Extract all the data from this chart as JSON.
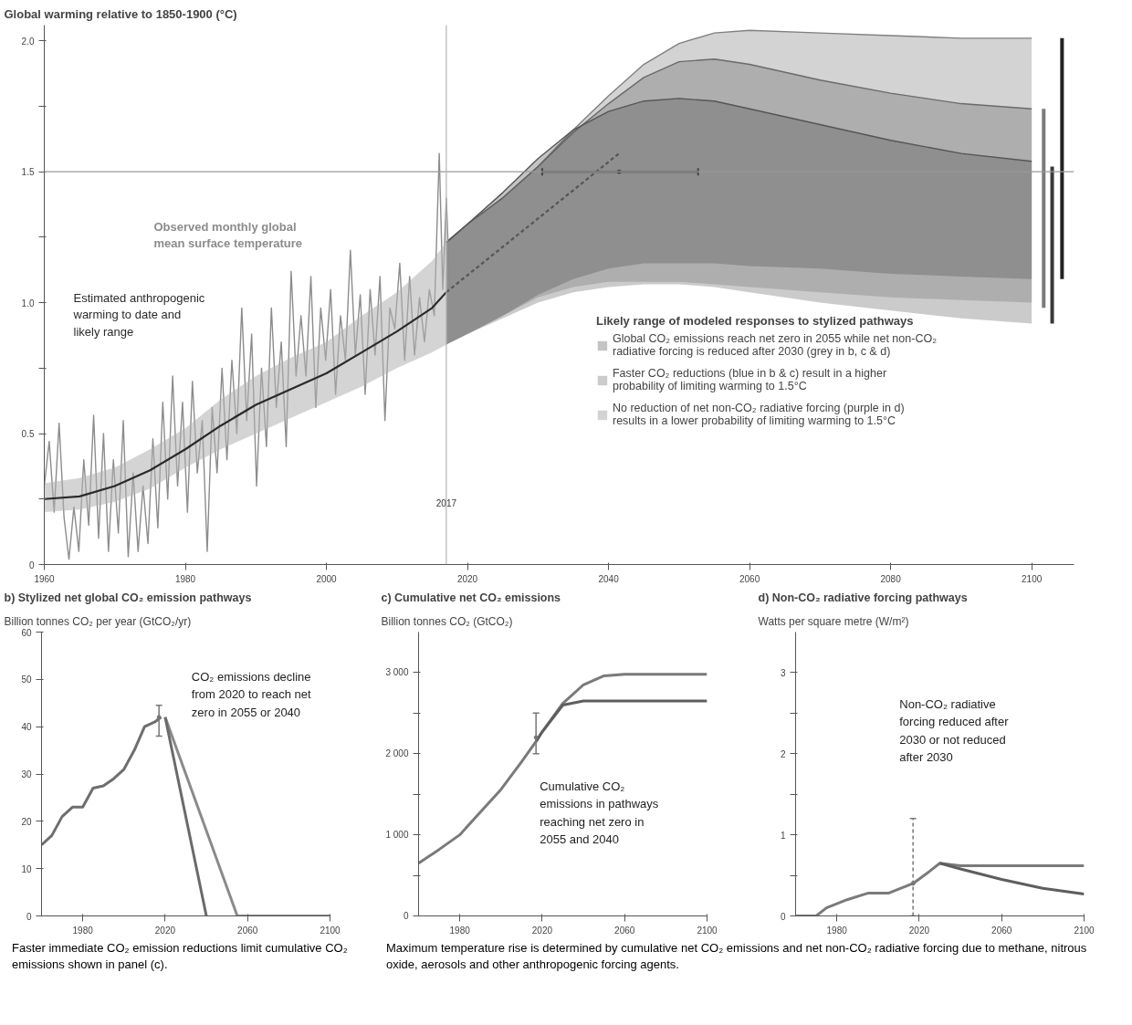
{
  "chart_data": [
    {
      "type": "line",
      "title": "Global warming relative to 1850-1900 (°C)",
      "legend_title": "Likely range of modeled responses to stylized pathways",
      "legend": "bottom right",
      "xlim": [
        1960,
        2106
      ],
      "ylim": [
        0,
        2.06
      ],
      "xticks": [
        1960,
        1980,
        2000,
        2020,
        2040,
        2060,
        2080,
        2100
      ],
      "yticks": [
        0,
        {
          "value": 0.25,
          "label": null
        },
        0.5,
        {
          "value": 0.75,
          "label": null
        },
        {
          "value": 1,
          "label": "1.0"
        },
        {
          "value": 1.25,
          "label": null
        },
        1.5,
        {
          "value": 1.75,
          "label": null
        },
        {
          "value": 2,
          "label": "2.0"
        }
      ],
      "ref_lines": [
        {
          "axis": "y",
          "value": 1.5,
          "color": "#9a9a9a"
        },
        {
          "axis": "x",
          "value": 2017,
          "label": "2017",
          "color": "#b5b5b5"
        }
      ],
      "series": [
        {
          "type": "line",
          "name": "Observed monthly global mean surface temperature",
          "color": "#8c8c8c",
          "x": [
            1960,
            1960.7,
            1961.4,
            1962.1,
            1962.8,
            1963.5,
            1964.2,
            1964.9,
            1965.6,
            1966.3,
            1967,
            1967.7,
            1968.4,
            1969.1,
            1969.8,
            1970.5,
            1971.2,
            1971.9,
            1972.6,
            1973.3,
            1974,
            1974.7,
            1975.4,
            1976.1,
            1976.8,
            1977.5,
            1978.2,
            1978.9,
            1979.6,
            1980.3,
            1981,
            1981.7,
            1982.4,
            1983.1,
            1983.8,
            1984.5,
            1985.2,
            1985.9,
            1986.6,
            1987.3,
            1988,
            1988.7,
            1989.4,
            1990.1,
            1990.8,
            1991.5,
            1992.2,
            1992.9,
            1993.6,
            1994.3,
            1995,
            1995.7,
            1996.4,
            1997.1,
            1997.8,
            1998.5,
            1999.2,
            1999.9,
            2000.6,
            2001.3,
            2002,
            2002.7,
            2003.4,
            2004.1,
            2004.8,
            2005.5,
            2006.2,
            2006.9,
            2007.6,
            2008.3,
            2009,
            2009.7,
            2010.4,
            2011.1,
            2011.8,
            2012.5,
            2013.2,
            2013.9,
            2014.6,
            2015.3,
            2016,
            2016.5,
            2017,
            2017.5
          ],
          "values": [
            0.3,
            0.47,
            0.2,
            0.54,
            0.18,
            0.02,
            0.22,
            0.05,
            0.4,
            0.15,
            0.57,
            0.1,
            0.5,
            0.05,
            0.4,
            0.12,
            0.55,
            0.03,
            0.35,
            0.05,
            0.3,
            0.08,
            0.48,
            0.14,
            0.62,
            0.25,
            0.72,
            0.3,
            0.62,
            0.2,
            0.7,
            0.35,
            0.55,
            0.05,
            0.6,
            0.35,
            0.75,
            0.4,
            0.78,
            0.5,
            0.98,
            0.55,
            0.88,
            0.3,
            0.75,
            0.45,
            0.98,
            0.6,
            0.85,
            0.45,
            1.12,
            0.72,
            0.95,
            0.72,
            1.1,
            0.6,
            0.98,
            0.78,
            1.05,
            0.65,
            0.95,
            0.78,
            1.2,
            0.8,
            1.03,
            0.65,
            1.05,
            0.8,
            1.1,
            0.55,
            0.98,
            0.9,
            1.15,
            0.78,
            1.1,
            0.8,
            1.02,
            0.85,
            1.05,
            0.95,
            1.57,
            1.05,
            1.4,
            1.05
          ]
        },
        {
          "type": "line",
          "name": "Estimated anthropogenic warming to date and likely range",
          "color": "#2a2a2a",
          "x": [
            1960,
            1965,
            1970,
            1975,
            1980,
            1985,
            1990,
            1995,
            2000,
            2005,
            2010,
            2015,
            2017
          ],
          "values": [
            0.25,
            0.26,
            0.3,
            0.36,
            0.44,
            0.53,
            0.61,
            0.67,
            0.73,
            0.81,
            0.89,
            0.98,
            1.04
          ],
          "lower": [
            0.2,
            0.21,
            0.24,
            0.29,
            0.37,
            0.44,
            0.5,
            0.56,
            0.62,
            0.68,
            0.75,
            0.81,
            0.84
          ],
          "upper": [
            0.31,
            0.33,
            0.37,
            0.44,
            0.52,
            0.63,
            0.72,
            0.79,
            0.85,
            0.95,
            1.04,
            1.16,
            1.23
          ]
        },
        {
          "type": "line",
          "color": "#555555",
          "line_style": "dashed",
          "x": [
            2017,
            2041.5
          ],
          "values": [
            1.04,
            1.57
          ]
        },
        {
          "type": "scatter",
          "marker": "circle",
          "color": "#444444",
          "x": [
            2041.5
          ],
          "values": [
            1.5
          ],
          "xerrors": [
            [
              2030.6,
              2052.7
            ]
          ]
        },
        {
          "type": "line",
          "name": "No reduction of net non-CO₂ radiative forcing (purple in d) results in a lower probability of limiting warming to 1.5°C",
          "color": "#808080",
          "x": [
            2017,
            2020,
            2025,
            2030,
            2035,
            2040,
            2045,
            2050,
            2055,
            2060,
            2070,
            2080,
            2090,
            2100
          ],
          "values": [
            1.23,
            1.3,
            1.4,
            1.52,
            1.66,
            1.79,
            1.91,
            1.99,
            2.03,
            2.04,
            2.03,
            2.02,
            2.01,
            2.01
          ],
          "upper": [
            1.23,
            1.3,
            1.4,
            1.52,
            1.66,
            1.79,
            1.91,
            1.99,
            2.03,
            2.04,
            2.03,
            2.02,
            2.01,
            2.01
          ],
          "lower": [
            0.84,
            0.88,
            0.95,
            1.02,
            1.06,
            1.08,
            1.08,
            1.08,
            1.07,
            1.06,
            1.04,
            1.02,
            1.01,
            1.0
          ]
        },
        {
          "type": "line",
          "name": "Faster CO₂ reductions (blue in b & c) result in a higher probability of limiting warming to 1.5°C",
          "color": "#6a6a6a",
          "x": [
            2017,
            2020,
            2025,
            2030,
            2035,
            2040,
            2045,
            2050,
            2055,
            2060,
            2070,
            2080,
            2090,
            2100
          ],
          "values": [
            1.23,
            1.3,
            1.4,
            1.52,
            1.65,
            1.76,
            1.86,
            1.92,
            1.93,
            1.91,
            1.85,
            1.8,
            1.76,
            1.74
          ],
          "upper": [
            1.23,
            1.3,
            1.4,
            1.52,
            1.65,
            1.76,
            1.86,
            1.92,
            1.93,
            1.91,
            1.85,
            1.8,
            1.76,
            1.74
          ],
          "lower": [
            0.84,
            0.88,
            0.94,
            1.0,
            1.04,
            1.06,
            1.07,
            1.07,
            1.06,
            1.04,
            1.0,
            0.97,
            0.94,
            0.92
          ]
        },
        {
          "type": "line",
          "name": "Global CO₂ emissions reach net zero in 2055 while net non-CO₂ radiative forcing is reduced after 2030 (grey in b, c & d)",
          "color": "#555555",
          "x": [
            2017,
            2020,
            2025,
            2030,
            2035,
            2040,
            2045,
            2050,
            2055,
            2060,
            2070,
            2080,
            2090,
            2100
          ],
          "values": [
            1.23,
            1.3,
            1.42,
            1.55,
            1.66,
            1.73,
            1.77,
            1.78,
            1.77,
            1.74,
            1.68,
            1.62,
            1.57,
            1.54
          ],
          "upper": [
            1.23,
            1.3,
            1.42,
            1.55,
            1.66,
            1.73,
            1.77,
            1.78,
            1.77,
            1.74,
            1.68,
            1.62,
            1.57,
            1.54
          ],
          "lower": [
            0.84,
            0.88,
            0.95,
            1.03,
            1.09,
            1.13,
            1.15,
            1.15,
            1.15,
            1.14,
            1.13,
            1.11,
            1.1,
            1.09
          ]
        },
        {
          "type": "line",
          "color": "#7a7a7a",
          "x": [
            2101.7,
            2101.7
          ],
          "values": [
            0.98,
            1.74
          ]
        },
        {
          "type": "line",
          "color": "#3a3a3a",
          "x": [
            2102.9,
            2102.9
          ],
          "values": [
            0.92,
            1.52
          ]
        },
        {
          "type": "line",
          "color": "#222222",
          "x": [
            2104.3,
            2104.3
          ],
          "values": [
            1.09,
            2.01
          ]
        }
      ]
    },
    {
      "type": "line",
      "title": "b) Stylized net global CO₂ emission pathways",
      "ylabel": "Billion tonnes CO₂ per year (GtCO₂/yr)",
      "xlim": [
        1960,
        2100
      ],
      "ylim": [
        0,
        60
      ],
      "xticks": [
        1980,
        2020,
        2060,
        2100
      ],
      "yticks": [
        0,
        10,
        20,
        30,
        40,
        50,
        60
      ],
      "annotations": [
        "CO₂ emissions decline from 2020 to reach net zero in 2055 or 2040",
        "Faster immediate CO₂ emission reductions limit cumulative CO₂ emissions shown in panel (c)."
      ],
      "series": [
        {
          "color": "#6e6e6e",
          "x": [
            1960,
            1965,
            1970,
            1975,
            1980,
            1985,
            1990,
            1995,
            2000,
            2005,
            2010,
            2015,
            2018
          ],
          "values": [
            15,
            17,
            21,
            23,
            23,
            27,
            27.5,
            29,
            31,
            35,
            40,
            41,
            42
          ]
        },
        {
          "color": "#8a8a8a",
          "x": [
            2020,
            2055,
            2100
          ],
          "values": [
            42,
            0,
            0
          ]
        },
        {
          "color": "#6a6a6a",
          "x": [
            2020,
            2040
          ],
          "values": [
            42,
            0
          ]
        },
        {
          "type": "scatter",
          "marker": "circle",
          "color": "#777777",
          "x": [
            2017
          ],
          "values": [
            42
          ],
          "errors": [
            [
              38,
              44.5
            ]
          ]
        }
      ]
    },
    {
      "type": "line",
      "title": "c) Cumulative net CO₂ emissions",
      "ylabel": "Billion tonnes CO₂ (GtCO₂)",
      "xlim": [
        1960,
        2100
      ],
      "ylim": [
        0,
        3500
      ],
      "xticks": [
        1980,
        2020,
        2060,
        2100
      ],
      "yticks": [
        0,
        {
          "value": 500,
          "label": null
        },
        {
          "value": 1000,
          "label": "1 000"
        },
        {
          "value": 1500,
          "label": null
        },
        {
          "value": 2000,
          "label": "2 000"
        },
        {
          "value": 2500,
          "label": null
        },
        {
          "value": 3000,
          "label": "3 000"
        }
      ],
      "annotations": [
        "Cumulative CO₂ emissions in pathways reaching net zero in 2055 and 2040",
        "Maximum temperature rise is determined by cumulative net CO₂ emissions and net non-CO₂ radiative forcing due to methane, nitrous oxide, aerosols and other anthropogenic forcing agents."
      ],
      "series": [
        {
          "color": "#7a7a7a",
          "x": [
            1960,
            1970,
            1980,
            1990,
            2000,
            2010,
            2017,
            2020,
            2030,
            2040,
            2050,
            2060,
            2100
          ],
          "values": [
            650,
            820,
            1000,
            1280,
            1560,
            1900,
            2150,
            2270,
            2620,
            2850,
            2960,
            2980,
            2980
          ]
        },
        {
          "color": "#5e5e5e",
          "x": [
            2017,
            2020,
            2030,
            2040,
            2100
          ],
          "values": [
            2150,
            2270,
            2600,
            2650,
            2650
          ]
        },
        {
          "type": "scatter",
          "marker": "circle",
          "color": "#777777",
          "x": [
            2017
          ],
          "values": [
            2200
          ],
          "errors": [
            [
              2000,
              2500
            ]
          ]
        }
      ]
    },
    {
      "type": "line",
      "title": "d) Non-CO₂ radiative forcing pathways",
      "ylabel": "Watts per square metre (W/m²)",
      "xlim": [
        1960,
        2100
      ],
      "ylim": [
        0,
        3.5
      ],
      "xticks": [
        1980,
        2020,
        2060,
        2100
      ],
      "yticks": [
        0,
        {
          "value": 0.5,
          "label": null
        },
        1,
        {
          "value": 1.5,
          "label": null
        },
        2,
        {
          "value": 2.5,
          "label": null
        },
        3
      ],
      "annotations": [
        "Non-CO₂ radiative forcing reduced after 2030 or not reduced after 2030"
      ],
      "series": [
        {
          "color": "#7a7a7a",
          "x": [
            1960,
            1970,
            1975,
            1985,
            1995,
            2005,
            2017,
            2025,
            2030,
            2040,
            2100
          ],
          "values": [
            0,
            0,
            0.1,
            0.2,
            0.28,
            0.28,
            0.4,
            0.55,
            0.65,
            0.62,
            0.62
          ]
        },
        {
          "color": "#5e5e5e",
          "x": [
            2030,
            2040,
            2060,
            2080,
            2100
          ],
          "values": [
            0.65,
            0.58,
            0.45,
            0.34,
            0.27
          ]
        },
        {
          "type": "scatter",
          "marker": "circle",
          "line_style": "dashed",
          "color": "#777777",
          "x": [
            2017
          ],
          "values": [
            0.4
          ],
          "errors": [
            [
              0,
              1.2
            ]
          ]
        }
      ]
    }
  ]
}
